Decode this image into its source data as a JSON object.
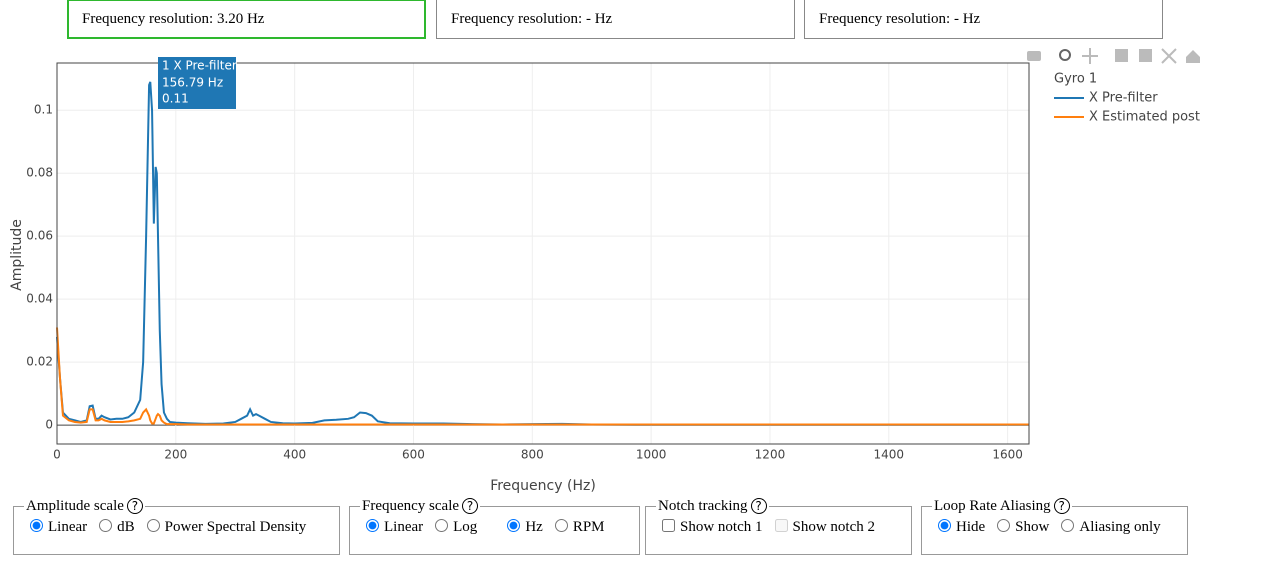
{
  "resolution_boxes": [
    "Frequency resolution: 3.20 Hz",
    "Frequency resolution: - Hz",
    "Frequency resolution: - Hz"
  ],
  "help_icon": "?",
  "chart_data": {
    "type": "line",
    "x_label": "Frequency (Hz)",
    "y_label": "Amplitude",
    "legend_title": "Gyro 1",
    "x": [
      0,
      5,
      10,
      20,
      30,
      40,
      50,
      55,
      60,
      65,
      70,
      75,
      80,
      90,
      100,
      110,
      120,
      130,
      140,
      145,
      150,
      155,
      157,
      160,
      163,
      166,
      168,
      170,
      173,
      176,
      180,
      185,
      190,
      200,
      220,
      250,
      280,
      300,
      310,
      320,
      325,
      330,
      335,
      340,
      350,
      360,
      380,
      400,
      430,
      450,
      470,
      490,
      500,
      510,
      520,
      530,
      540,
      560,
      600,
      650,
      700,
      750,
      800,
      850,
      900,
      1000,
      1200,
      1400,
      1636
    ],
    "series": [
      {
        "name": "X Pre-filter",
        "color": "#1f77b4",
        "values": [
          0.028,
          0.015,
          0.004,
          0.002,
          0.0015,
          0.001,
          0.0015,
          0.006,
          0.0062,
          0.002,
          0.002,
          0.003,
          0.0025,
          0.0018,
          0.002,
          0.002,
          0.0025,
          0.004,
          0.008,
          0.02,
          0.06,
          0.108,
          0.109,
          0.1,
          0.064,
          0.082,
          0.08,
          0.06,
          0.03,
          0.013,
          0.004,
          0.002,
          0.001,
          0.0008,
          0.0006,
          0.0004,
          0.0005,
          0.001,
          0.002,
          0.003,
          0.005,
          0.003,
          0.0035,
          0.003,
          0.002,
          0.001,
          0.0006,
          0.0005,
          0.0007,
          0.0015,
          0.0017,
          0.002,
          0.0025,
          0.004,
          0.0038,
          0.003,
          0.0012,
          0.0006,
          0.0005,
          0.0005,
          0.0003,
          0.0002,
          0.0003,
          0.0004,
          0.0002,
          0.0001,
          0.0001,
          0.0001,
          0.0001
        ]
      },
      {
        "name": "X Estimated post",
        "color": "#ff7f0e",
        "values": [
          0.031,
          0.015,
          0.003,
          0.0015,
          0.001,
          0.0008,
          0.001,
          0.005,
          0.005,
          0.0015,
          0.0015,
          0.002,
          0.0015,
          0.001,
          0.001,
          0.001,
          0.0012,
          0.0015,
          0.002,
          0.004,
          0.005,
          0.003,
          0.0015,
          0.0005,
          0.0005,
          0.002,
          0.003,
          0.0035,
          0.003,
          0.0015,
          0.0008,
          0.0003,
          0.0003,
          0.0003,
          0.0002,
          0.0002,
          0.0002,
          0.0002,
          0.0002,
          0.0002,
          0.0002,
          0.0002,
          0.0002,
          0.0002,
          0.0002,
          0.0002,
          0.0002,
          0.0002,
          0.0002,
          0.0002,
          0.0002,
          0.0002,
          0.0002,
          0.0002,
          0.0002,
          0.0002,
          0.0002,
          0.0002,
          0.0002,
          0.0002,
          0.0002,
          0.0002,
          0.0002,
          0.0002,
          0.0002,
          0.0002,
          0.0002,
          0.0002,
          0.0002
        ]
      }
    ],
    "xlim": [
      0,
      1636
    ],
    "ylim": [
      -0.006,
      0.115
    ],
    "xticks": [
      0,
      200,
      400,
      600,
      800,
      1000,
      1200,
      1400,
      1600
    ],
    "yticks": [
      0,
      0.02,
      0.04,
      0.06,
      0.08,
      0.1
    ],
    "grid": true,
    "tooltip": {
      "title": "1 X Pre-filter",
      "x_text": "156.79 Hz",
      "y_text": "0.11"
    }
  },
  "controls": [
    {
      "legend": "Amplitude scale",
      "options": [
        {
          "label": "Linear",
          "type": "radio",
          "checked": true
        },
        {
          "label": "dB",
          "type": "radio",
          "checked": false
        },
        {
          "label": "Power Spectral Density",
          "type": "radio",
          "checked": false
        }
      ]
    },
    {
      "legend": "Frequency scale",
      "options": [
        {
          "label": "Linear",
          "type": "radio",
          "checked": true
        },
        {
          "label": "Log",
          "type": "radio",
          "checked": false
        },
        {
          "label": "Hz",
          "type": "radio",
          "checked": true
        },
        {
          "label": "RPM",
          "type": "radio",
          "checked": false
        }
      ]
    },
    {
      "legend": "Notch tracking",
      "options": [
        {
          "label": "Show notch 1",
          "type": "checkbox",
          "checked": false
        },
        {
          "label": "Show notch 2",
          "type": "checkbox",
          "checked": false,
          "disabled": true
        }
      ]
    },
    {
      "legend": "Loop Rate Aliasing",
      "options": [
        {
          "label": "Hide",
          "type": "radio",
          "checked": true
        },
        {
          "label": "Show",
          "type": "radio",
          "checked": false
        },
        {
          "label": "Aliasing only",
          "type": "radio",
          "checked": false
        }
      ]
    }
  ]
}
